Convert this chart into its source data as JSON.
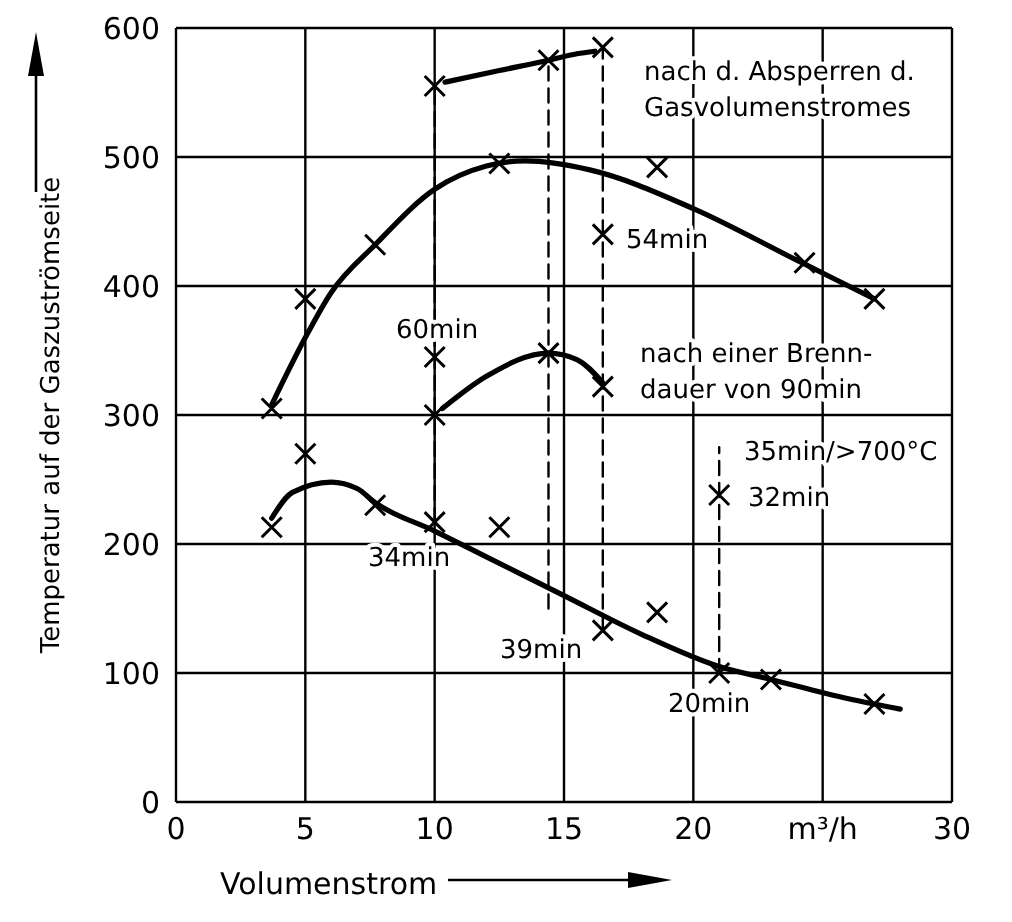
{
  "chart_data": {
    "type": "line",
    "xlabel": "Volumenstrom",
    "ylabel": "Temperatur auf der Gaszuströmseite",
    "xlim": [
      0,
      30
    ],
    "xticks": [
      0,
      5,
      10,
      15,
      20,
      {
        "value": 25,
        "label": "m³/h"
      },
      30
    ],
    "ylim": [
      0,
      600
    ],
    "yticks": [
      0,
      100,
      200,
      300,
      400,
      500,
      600
    ],
    "grid": true,
    "series": [
      {
        "color": "#000000",
        "marker": "none",
        "line_style": "solid",
        "x": [
          10.4,
          12.5,
          14.4,
          15.5,
          16.2
        ],
        "values": [
          558,
          567,
          575,
          580,
          582
        ]
      },
      {
        "color": "#000000",
        "marker": "none",
        "line_style": "solid",
        "x": [
          3.7,
          5,
          6,
          7.7,
          10,
          12,
          13.5,
          16,
          20,
          24,
          27
        ],
        "values": [
          308,
          360,
          395,
          432,
          475,
          493,
          497,
          490,
          460,
          420,
          390
        ]
      },
      {
        "type": "line",
        "color": "#000000",
        "marker": "none",
        "line_style": "solid",
        "x": [
          10.3,
          12,
          14.4,
          15.5,
          16.5
        ],
        "values": [
          305,
          330,
          348,
          343,
          325
        ]
      },
      {
        "type": "line",
        "color": "#000000",
        "marker": "none",
        "line_style": "solid",
        "x": [
          3.7,
          4.5,
          6,
          7,
          7.7,
          10,
          12,
          15,
          18,
          21,
          23,
          26,
          28
        ],
        "values": [
          220,
          240,
          248,
          243,
          232,
          210,
          190,
          160,
          130,
          105,
          95,
          80,
          72
        ]
      },
      {
        "type": "line",
        "color": "#000000",
        "marker": "none",
        "line_style": "dashed",
        "x": [
          10,
          10
        ],
        "values": [
          217,
          555
        ]
      },
      {
        "type": "line",
        "color": "#000000",
        "marker": "none",
        "line_style": "dashed",
        "x": [
          14.4,
          14.4
        ],
        "values": [
          150,
          575
        ]
      },
      {
        "type": "line",
        "color": "#000000",
        "marker": "none",
        "line_style": "dashed",
        "x": [
          16.5,
          16.5
        ],
        "values": [
          133,
          585
        ]
      },
      {
        "type": "line",
        "color": "#000000",
        "marker": "none",
        "line_style": "dashed",
        "x": [
          21,
          21
        ],
        "values": [
          100,
          275
        ]
      },
      {
        "type": "scatter",
        "color": "#000000",
        "marker": "cross",
        "x": [
          10,
          14.4,
          16.5,
          3.7,
          5,
          7.7,
          12.5,
          18.6,
          24.3,
          27,
          10,
          10,
          14.4,
          16.5,
          16.5,
          3.7,
          5,
          7.7,
          10,
          12.5,
          16.5,
          18.6,
          21,
          23,
          27,
          21
        ],
        "values": [
          555,
          575,
          585,
          305,
          390,
          432,
          495,
          492,
          418,
          390,
          345,
          300,
          348,
          322,
          440,
          213,
          270,
          230,
          217,
          213,
          133,
          147,
          100,
          95,
          76,
          238
        ]
      }
    ],
    "annotations": [
      "nach d. Absperren d.\nGasvolumenstromes",
      "54min",
      "60min",
      "nach einer Brenn-\ndauer von 90min",
      "35min/>700°C",
      "32min",
      "34min",
      "39min",
      "20min"
    ]
  }
}
